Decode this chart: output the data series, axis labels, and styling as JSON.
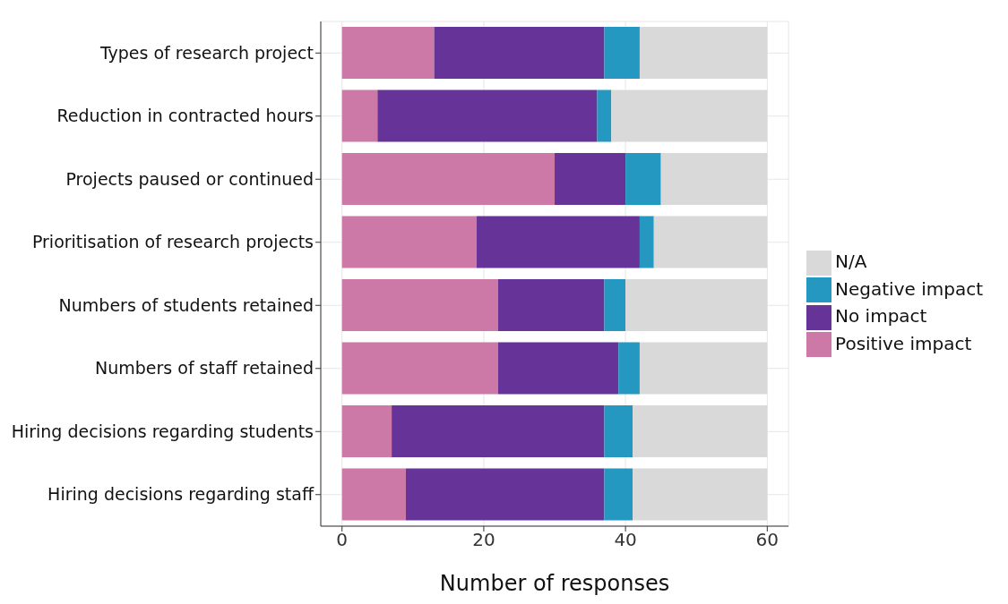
{
  "chart_data": {
    "type": "bar",
    "orientation": "horizontal",
    "stacked": true,
    "xlabel": "Number of responses",
    "categories": [
      "Types of research project",
      "Reduction in contracted hours",
      "Projects paused or continued",
      "Prioritisation of research projects",
      "Numbers of students retained",
      "Numbers of staff retained",
      "Hiring decisions regarding students",
      "Hiring decisions regarding staff"
    ],
    "series": [
      {
        "name": "Positive impact",
        "color": "#cc79a7",
        "values": [
          13,
          5,
          30,
          19,
          22,
          22,
          7,
          9
        ]
      },
      {
        "name": "No impact",
        "color": "#663399",
        "values": [
          24,
          31,
          10,
          23,
          15,
          17,
          30,
          28
        ]
      },
      {
        "name": "Negative impact",
        "color": "#2498c1",
        "values": [
          5,
          2,
          5,
          2,
          3,
          3,
          4,
          4
        ]
      },
      {
        "name": "N/A",
        "color": "#d9d9d9",
        "values": [
          18,
          22,
          15,
          16,
          20,
          18,
          19,
          19
        ]
      }
    ],
    "xlim": [
      -3,
      63
    ],
    "xticks": [
      0,
      20,
      40,
      60
    ],
    "grid": true,
    "legend": "right"
  }
}
